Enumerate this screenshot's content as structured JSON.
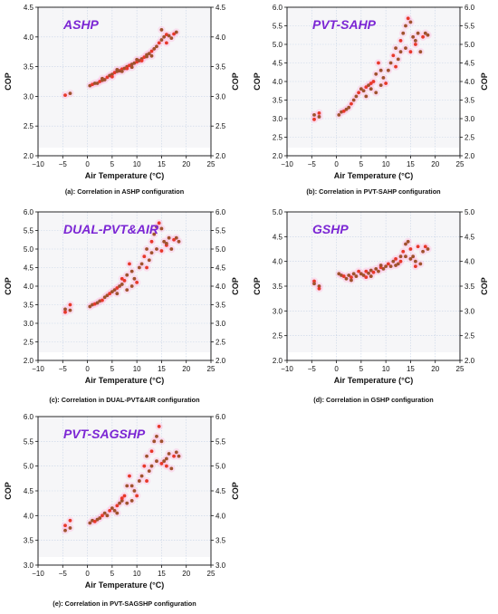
{
  "chart_data": [
    {
      "id": "a",
      "type": "scatter",
      "title": "ASHP",
      "caption": "(a): Correlation in ASHP configuration",
      "xlabel": "Air Temperature (°C)",
      "ylabel": "COP",
      "xlim": [
        -10,
        25
      ],
      "ylim": [
        2.0,
        4.5
      ],
      "xticks": [
        "−10",
        "−5",
        "0",
        "5",
        "10",
        "15",
        "20",
        "25"
      ],
      "yticks": [
        "2.0",
        "2.5",
        "3.0",
        "3.5",
        "4.0",
        "4.5"
      ],
      "grid": true,
      "colors": {
        "point": "#a0522d",
        "highlight": "#e8382a"
      },
      "points": [
        [
          -4.5,
          3.02
        ],
        [
          -3.5,
          3.05
        ],
        [
          0.5,
          3.18
        ],
        [
          1,
          3.2
        ],
        [
          1.5,
          3.22
        ],
        [
          2,
          3.22
        ],
        [
          2.5,
          3.25
        ],
        [
          3,
          3.27
        ],
        [
          3.5,
          3.28
        ],
        [
          4,
          3.32
        ],
        [
          4.5,
          3.35
        ],
        [
          5,
          3.37
        ],
        [
          5.5,
          3.4
        ],
        [
          6,
          3.42
        ],
        [
          6.5,
          3.43
        ],
        [
          7,
          3.46
        ],
        [
          7.5,
          3.47
        ],
        [
          8,
          3.5
        ],
        [
          8.5,
          3.52
        ],
        [
          9,
          3.54
        ],
        [
          9.5,
          3.56
        ],
        [
          10,
          3.58
        ],
        [
          10.5,
          3.6
        ],
        [
          11,
          3.63
        ],
        [
          11.5,
          3.66
        ],
        [
          12,
          3.7
        ],
        [
          12.5,
          3.72
        ],
        [
          13,
          3.76
        ],
        [
          13.5,
          3.8
        ],
        [
          14,
          3.84
        ],
        [
          14.5,
          3.9
        ],
        [
          15,
          3.95
        ],
        [
          15.5,
          4.0
        ],
        [
          16,
          4.04
        ],
        [
          16.5,
          4.02
        ],
        [
          17,
          3.98
        ],
        [
          17.5,
          4.05
        ],
        [
          18,
          4.08
        ],
        [
          15,
          4.12
        ],
        [
          16,
          3.9
        ],
        [
          13,
          3.68
        ],
        [
          7,
          3.42
        ],
        [
          8,
          3.47
        ],
        [
          9,
          3.49
        ],
        [
          10,
          3.62
        ],
        [
          11,
          3.6
        ],
        [
          12,
          3.67
        ],
        [
          6,
          3.45
        ],
        [
          5,
          3.33
        ],
        [
          3,
          3.3
        ]
      ]
    },
    {
      "id": "b",
      "type": "scatter",
      "title": "PVT-SAHP",
      "caption": "(b): Correlation in PVT-SAHP configuration",
      "xlabel": "Air Temperature (°C)",
      "ylabel": "COP",
      "xlim": [
        -10,
        25
      ],
      "ylim": [
        2.0,
        6.0
      ],
      "xticks": [
        "−10",
        "−5",
        "0",
        "5",
        "10",
        "15",
        "20",
        "25"
      ],
      "yticks": [
        "2.0",
        "2.5",
        "3.0",
        "3.5",
        "4.0",
        "4.5",
        "5.0",
        "5.5",
        "6.0"
      ],
      "grid": true,
      "colors": {
        "point": "#a0522d",
        "highlight": "#e8382a"
      },
      "points": [
        [
          -4.5,
          2.98
        ],
        [
          -4.5,
          3.1
        ],
        [
          -3.5,
          3.05
        ],
        [
          -3.5,
          3.15
        ],
        [
          0.5,
          3.1
        ],
        [
          1,
          3.18
        ],
        [
          1.5,
          3.2
        ],
        [
          2,
          3.25
        ],
        [
          2.5,
          3.3
        ],
        [
          3,
          3.4
        ],
        [
          3.5,
          3.5
        ],
        [
          4,
          3.6
        ],
        [
          4.5,
          3.7
        ],
        [
          5,
          3.8
        ],
        [
          5.5,
          3.75
        ],
        [
          6,
          3.85
        ],
        [
          6.5,
          3.9
        ],
        [
          7,
          3.8
        ],
        [
          7.5,
          4.0
        ],
        [
          8,
          4.2
        ],
        [
          8,
          3.7
        ],
        [
          8.5,
          4.5
        ],
        [
          9,
          3.9
        ],
        [
          9.5,
          4.1
        ],
        [
          10,
          3.95
        ],
        [
          10.5,
          4.3
        ],
        [
          11,
          4.5
        ],
        [
          11.5,
          4.7
        ],
        [
          12,
          4.9
        ],
        [
          12.5,
          4.6
        ],
        [
          13,
          5.1
        ],
        [
          13.5,
          5.3
        ],
        [
          14,
          5.5
        ],
        [
          14.5,
          5.7
        ],
        [
          15,
          5.6
        ],
        [
          15.5,
          5.2
        ],
        [
          16,
          5.0
        ],
        [
          16.5,
          5.3
        ],
        [
          17,
          4.8
        ],
        [
          17.5,
          5.2
        ],
        [
          18,
          5.3
        ],
        [
          18.5,
          5.25
        ],
        [
          12,
          4.4
        ],
        [
          13,
          4.8
        ],
        [
          14,
          4.9
        ],
        [
          15,
          4.8
        ],
        [
          16,
          5.1
        ],
        [
          9,
          4.3
        ],
        [
          7,
          3.95
        ],
        [
          6,
          3.6
        ]
      ]
    },
    {
      "id": "c",
      "type": "scatter",
      "title": "DUAL-PVT&AIR",
      "caption": "(c): Correlation in DUAL-PVT&AIR configuration",
      "xlabel": "Air Temperature (°C)",
      "ylabel": "COP",
      "xlim": [
        -10,
        25
      ],
      "ylim": [
        2.0,
        6.0
      ],
      "xticks": [
        "−10",
        "−5",
        "0",
        "5",
        "10",
        "15",
        "20",
        "25"
      ],
      "yticks": [
        "2.0",
        "2.5",
        "3.0",
        "3.5",
        "4.0",
        "4.5",
        "5.0",
        "5.5",
        "6.0"
      ],
      "grid": true,
      "colors": {
        "point": "#a0522d",
        "highlight": "#e8382a"
      },
      "points": [
        [
          -4.5,
          3.3
        ],
        [
          -4.5,
          3.38
        ],
        [
          -3.5,
          3.35
        ],
        [
          -3.5,
          3.5
        ],
        [
          0.5,
          3.45
        ],
        [
          1,
          3.5
        ],
        [
          1.5,
          3.52
        ],
        [
          2,
          3.55
        ],
        [
          2.5,
          3.6
        ],
        [
          3,
          3.62
        ],
        [
          3.5,
          3.7
        ],
        [
          4,
          3.75
        ],
        [
          4.5,
          3.8
        ],
        [
          5,
          3.85
        ],
        [
          5.5,
          3.9
        ],
        [
          6,
          3.95
        ],
        [
          6.5,
          4.0
        ],
        [
          7,
          4.05
        ],
        [
          7.5,
          4.15
        ],
        [
          8,
          4.3
        ],
        [
          8,
          3.9
        ],
        [
          8.5,
          4.6
        ],
        [
          9,
          4.0
        ],
        [
          9.5,
          4.2
        ],
        [
          10,
          4.1
        ],
        [
          10.5,
          4.5
        ],
        [
          11,
          4.6
        ],
        [
          11.5,
          4.8
        ],
        [
          12,
          5.0
        ],
        [
          12.5,
          4.7
        ],
        [
          13,
          5.2
        ],
        [
          13.5,
          5.4
        ],
        [
          14,
          5.6
        ],
        [
          14.5,
          5.7
        ],
        [
          15,
          5.55
        ],
        [
          15.5,
          5.2
        ],
        [
          16,
          5.1
        ],
        [
          16.5,
          5.3
        ],
        [
          17,
          5.0
        ],
        [
          17.5,
          5.25
        ],
        [
          18,
          5.3
        ],
        [
          18.5,
          5.2
        ],
        [
          12,
          4.5
        ],
        [
          13,
          4.9
        ],
        [
          14,
          5.0
        ],
        [
          15,
          4.95
        ],
        [
          16,
          5.15
        ],
        [
          9,
          4.4
        ],
        [
          7,
          4.2
        ],
        [
          6,
          3.8
        ]
      ]
    },
    {
      "id": "d",
      "type": "scatter",
      "title": "GSHP",
      "caption": "(d): Correlation in GSHP configuration",
      "xlabel": "Air Temperature (°C)",
      "ylabel": "COP",
      "xlim": [
        -10,
        25
      ],
      "ylim": [
        2.0,
        5.0
      ],
      "xticks": [
        "−10",
        "−5",
        "0",
        "5",
        "10",
        "15",
        "20",
        "25"
      ],
      "yticks": [
        "2.0",
        "2.5",
        "3.0",
        "3.5",
        "4.0",
        "4.5",
        "5.0"
      ],
      "grid": true,
      "colors": {
        "point": "#a0522d",
        "highlight": "#e8382a"
      },
      "points": [
        [
          -4.5,
          3.6
        ],
        [
          -4.5,
          3.55
        ],
        [
          -3.5,
          3.5
        ],
        [
          -3.5,
          3.45
        ],
        [
          0.5,
          3.75
        ],
        [
          1,
          3.72
        ],
        [
          1.5,
          3.7
        ],
        [
          2,
          3.65
        ],
        [
          2.5,
          3.72
        ],
        [
          3,
          3.68
        ],
        [
          3.5,
          3.75
        ],
        [
          4,
          3.7
        ],
        [
          4.5,
          3.8
        ],
        [
          5,
          3.75
        ],
        [
          5.5,
          3.72
        ],
        [
          6,
          3.8
        ],
        [
          6.5,
          3.76
        ],
        [
          7,
          3.82
        ],
        [
          7.5,
          3.78
        ],
        [
          8,
          3.85
        ],
        [
          8.5,
          3.8
        ],
        [
          9,
          3.88
        ],
        [
          9.5,
          3.85
        ],
        [
          10,
          3.9
        ],
        [
          10.5,
          3.95
        ],
        [
          11,
          3.9
        ],
        [
          11.5,
          4.0
        ],
        [
          12,
          4.05
        ],
        [
          12.5,
          3.95
        ],
        [
          13,
          4.1
        ],
        [
          13.5,
          4.2
        ],
        [
          14,
          4.35
        ],
        [
          14.5,
          4.4
        ],
        [
          15,
          4.25
        ],
        [
          15.5,
          4.1
        ],
        [
          16,
          4.0
        ],
        [
          16.5,
          4.3
        ],
        [
          17,
          3.95
        ],
        [
          17.5,
          4.2
        ],
        [
          18,
          4.3
        ],
        [
          18.5,
          4.25
        ],
        [
          12,
          3.92
        ],
        [
          13,
          4.0
        ],
        [
          14,
          4.1
        ],
        [
          15,
          4.05
        ],
        [
          16,
          3.9
        ],
        [
          9,
          3.92
        ],
        [
          7,
          3.7
        ],
        [
          6,
          3.68
        ],
        [
          3,
          3.62
        ]
      ]
    },
    {
      "id": "e",
      "type": "scatter",
      "title": "PVT-SAGSHP",
      "caption": "(e): Correlation in PVT-SAGSHP configuration",
      "xlabel": "Air Temperature (°C)",
      "ylabel": "COP",
      "xlim": [
        -10,
        25
      ],
      "ylim": [
        3.0,
        6.0
      ],
      "xticks": [
        "−10",
        "−5",
        "0",
        "5",
        "10",
        "15",
        "20",
        "25"
      ],
      "yticks": [
        "3.0",
        "3.5",
        "4.0",
        "4.5",
        "5.0",
        "5.5",
        "6.0"
      ],
      "grid": true,
      "colors": {
        "point": "#a0522d",
        "highlight": "#e8382a"
      },
      "points": [
        [
          -4.5,
          3.8
        ],
        [
          -4.5,
          3.7
        ],
        [
          -3.5,
          3.75
        ],
        [
          -3.5,
          3.9
        ],
        [
          0.5,
          3.85
        ],
        [
          1,
          3.9
        ],
        [
          1.5,
          3.88
        ],
        [
          2,
          3.92
        ],
        [
          2.5,
          3.95
        ],
        [
          3,
          4.0
        ],
        [
          3.5,
          4.05
        ],
        [
          4,
          4.0
        ],
        [
          4.5,
          4.1
        ],
        [
          5,
          4.15
        ],
        [
          5.5,
          4.1
        ],
        [
          6,
          4.2
        ],
        [
          6.5,
          4.25
        ],
        [
          7,
          4.3
        ],
        [
          7.5,
          4.4
        ],
        [
          8,
          4.6
        ],
        [
          8,
          4.25
        ],
        [
          8.5,
          4.8
        ],
        [
          9,
          4.3
        ],
        [
          9.5,
          4.5
        ],
        [
          10,
          4.4
        ],
        [
          10.5,
          4.7
        ],
        [
          11,
          4.8
        ],
        [
          11.5,
          5.0
        ],
        [
          12,
          5.2
        ],
        [
          12.5,
          4.9
        ],
        [
          13,
          5.3
        ],
        [
          13.5,
          5.5
        ],
        [
          14,
          5.6
        ],
        [
          14.5,
          5.8
        ],
        [
          15,
          5.5
        ],
        [
          15.5,
          5.1
        ],
        [
          16,
          5.0
        ],
        [
          16.5,
          5.25
        ],
        [
          17,
          4.95
        ],
        [
          17.5,
          5.2
        ],
        [
          18,
          5.28
        ],
        [
          18.5,
          5.2
        ],
        [
          12,
          4.7
        ],
        [
          13,
          5.0
        ],
        [
          14,
          5.1
        ],
        [
          15,
          5.05
        ],
        [
          16,
          5.15
        ],
        [
          9,
          4.6
        ],
        [
          7,
          4.35
        ],
        [
          6,
          4.05
        ]
      ]
    }
  ]
}
